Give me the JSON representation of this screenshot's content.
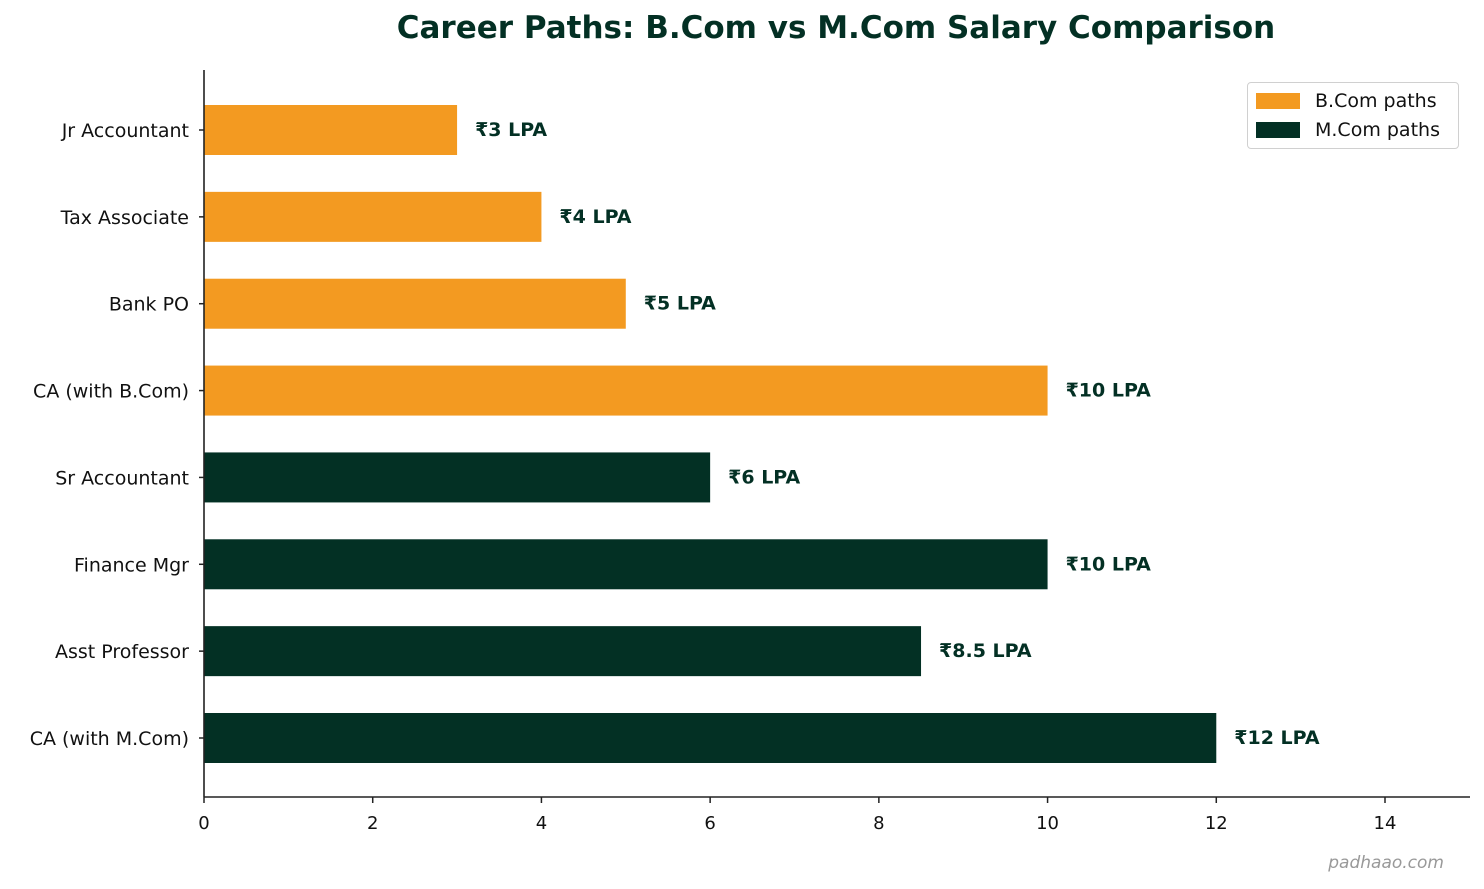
{
  "chart_data": {
    "type": "bar",
    "orientation": "horizontal",
    "title": "Career Paths: B.Com vs M.Com Salary Comparison",
    "xlabel": "",
    "ylabel": "",
    "xlim": [
      0,
      15
    ],
    "xticks": [
      0,
      2,
      4,
      6,
      8,
      10,
      12,
      14
    ],
    "grid": false,
    "legend_position": "upper right",
    "categories": [
      "Jr Accountant",
      "Tax Associate",
      "Bank PO",
      "CA (with B.Com)",
      "Sr Accountant",
      "Finance Mgr",
      "Asst Professor",
      "CA (with M.Com)"
    ],
    "values": [
      3,
      4,
      5,
      10,
      6,
      10,
      8.5,
      12
    ],
    "labels": [
      "₹3 LPA",
      "₹4 LPA",
      "₹5 LPA",
      "₹10 LPA",
      "₹6 LPA",
      "₹10 LPA",
      "₹8.5 LPA",
      "₹12 LPA"
    ],
    "groups": [
      "B.Com paths",
      "B.Com paths",
      "B.Com paths",
      "B.Com paths",
      "M.Com paths",
      "M.Com paths",
      "M.Com paths",
      "M.Com paths"
    ],
    "series": [
      {
        "name": "B.Com paths",
        "color": "#F39A21",
        "categories": [
          "Jr Accountant",
          "Tax Associate",
          "Bank PO",
          "CA (with B.Com)"
        ],
        "values": [
          3,
          4,
          5,
          10
        ]
      },
      {
        "name": "M.Com paths",
        "color": "#033024",
        "categories": [
          "Sr Accountant",
          "Finance Mgr",
          "Asst Professor",
          "CA (with M.Com)"
        ],
        "values": [
          6,
          10,
          8.5,
          12
        ]
      }
    ]
  },
  "legend": {
    "items": [
      {
        "label": "B.Com paths",
        "color": "#F39A21"
      },
      {
        "label": "M.Com paths",
        "color": "#033024"
      }
    ]
  },
  "colors": {
    "title": "#033024",
    "value_label": "#033024",
    "axis": "#222222"
  },
  "watermark": "padhaao.com"
}
